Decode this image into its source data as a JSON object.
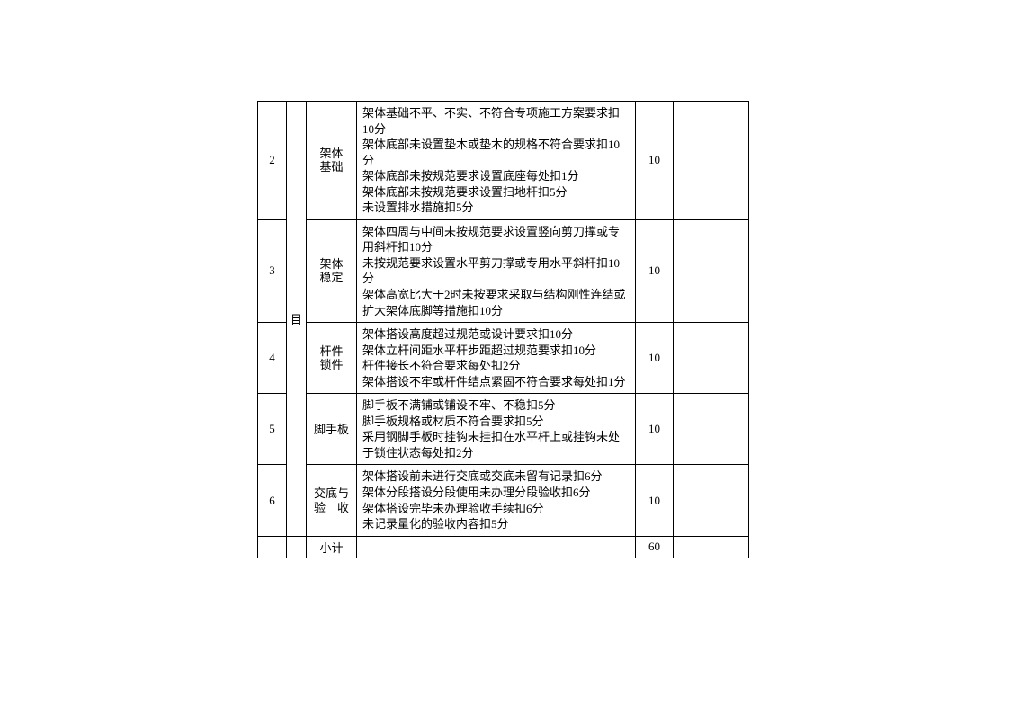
{
  "category_label": "目",
  "rows": [
    {
      "num": "2",
      "item": "架体\n基础",
      "desc": "架体基础不平、不实、不符合专项施工方案要求扣10分\n架体底部未设置垫木或垫木的规格不符合要求扣10分\n架体底部未按规范要求设置底座每处扣1分\n架体底部未按规范要求设置扫地杆扣5分\n未设置排水措施扣5分",
      "score": "10"
    },
    {
      "num": "3",
      "item": "架体\n稳定",
      "desc": "架体四周与中间未按规范要求设置竖向剪刀撑或专用斜杆扣10分\n未按规范要求设置水平剪刀撑或专用水平斜杆扣10分\n架体高宽比大于2时未按要求采取与结构刚性连结或扩大架体底脚等措施扣10分",
      "score": "10"
    },
    {
      "num": "4",
      "item": "杆件\n锁件",
      "desc": "架体搭设高度超过规范或设计要求扣10分\n架体立杆间距水平杆步距超过规范要求扣10分\n杆件接长不符合要求每处扣2分\n架体搭设不牢或杆件结点紧固不符合要求每处扣1分",
      "score": "10"
    },
    {
      "num": "5",
      "item": "脚手板",
      "desc": "脚手板不满铺或铺设不牢、不稳扣5分\n脚手板规格或材质不符合要求扣5分\n采用钢脚手板时挂钩未挂扣在水平杆上或挂钩未处于锁住状态每处扣2分",
      "score": "10"
    },
    {
      "num": "6",
      "item": "交底与\n验　收",
      "desc": "架体搭设前未进行交底或交底未留有记录扣6分\n架体分段搭设分段使用未办理分段验收扣6分\n架体搭设完毕未办理验收手续扣6分\n未记录量化的验收内容扣5分",
      "score": "10"
    }
  ],
  "subtotal": {
    "label": "小计",
    "score": "60"
  }
}
